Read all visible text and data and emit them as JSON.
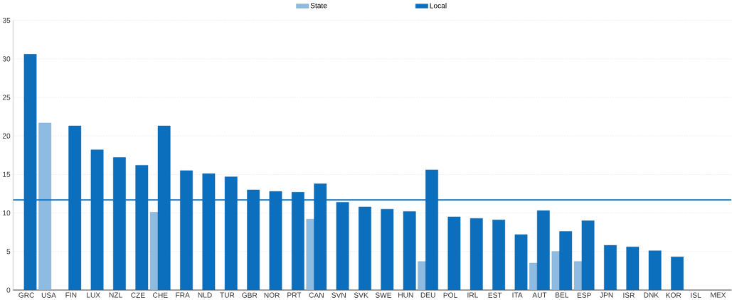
{
  "chart_data": {
    "type": "bar",
    "categories": [
      "GRC",
      "USA",
      "FIN",
      "LUX",
      "NZL",
      "CZE",
      "CHE",
      "FRA",
      "NLD",
      "TUR",
      "GBR",
      "NOR",
      "PRT",
      "CAN",
      "SVN",
      "SVK",
      "SWE",
      "HUN",
      "DEU",
      "POL",
      "IRL",
      "EST",
      "ITA",
      "AUT",
      "BEL",
      "ESP",
      "JPN",
      "ISR",
      "DNK",
      "KOR",
      "ISL",
      "MEX"
    ],
    "series": [
      {
        "name": "State",
        "color": "#8dbbe2",
        "values": [
          null,
          21.7,
          null,
          null,
          null,
          null,
          10.1,
          null,
          null,
          null,
          null,
          null,
          null,
          9.2,
          null,
          null,
          null,
          null,
          3.7,
          null,
          null,
          null,
          null,
          3.5,
          5.0,
          3.7,
          null,
          null,
          null,
          null,
          null,
          null
        ]
      },
      {
        "name": "Local",
        "color": "#0b6fbe",
        "values": [
          30.6,
          null,
          21.3,
          18.2,
          17.2,
          16.2,
          21.3,
          15.5,
          15.1,
          14.7,
          13.0,
          12.8,
          12.7,
          13.8,
          11.4,
          10.8,
          10.5,
          10.2,
          15.6,
          9.5,
          9.3,
          9.1,
          7.2,
          10.3,
          7.6,
          9.0,
          5.8,
          5.6,
          5.1,
          4.3,
          null,
          null
        ]
      }
    ],
    "ylim": [
      0,
      35
    ],
    "yticks": [
      0,
      5,
      10,
      15,
      20,
      25,
      30,
      35
    ],
    "grid": "y",
    "legend": "top",
    "ref_lines": [
      {
        "axis": "y",
        "value": 11.7,
        "color": "#0b6fbe"
      }
    ]
  }
}
